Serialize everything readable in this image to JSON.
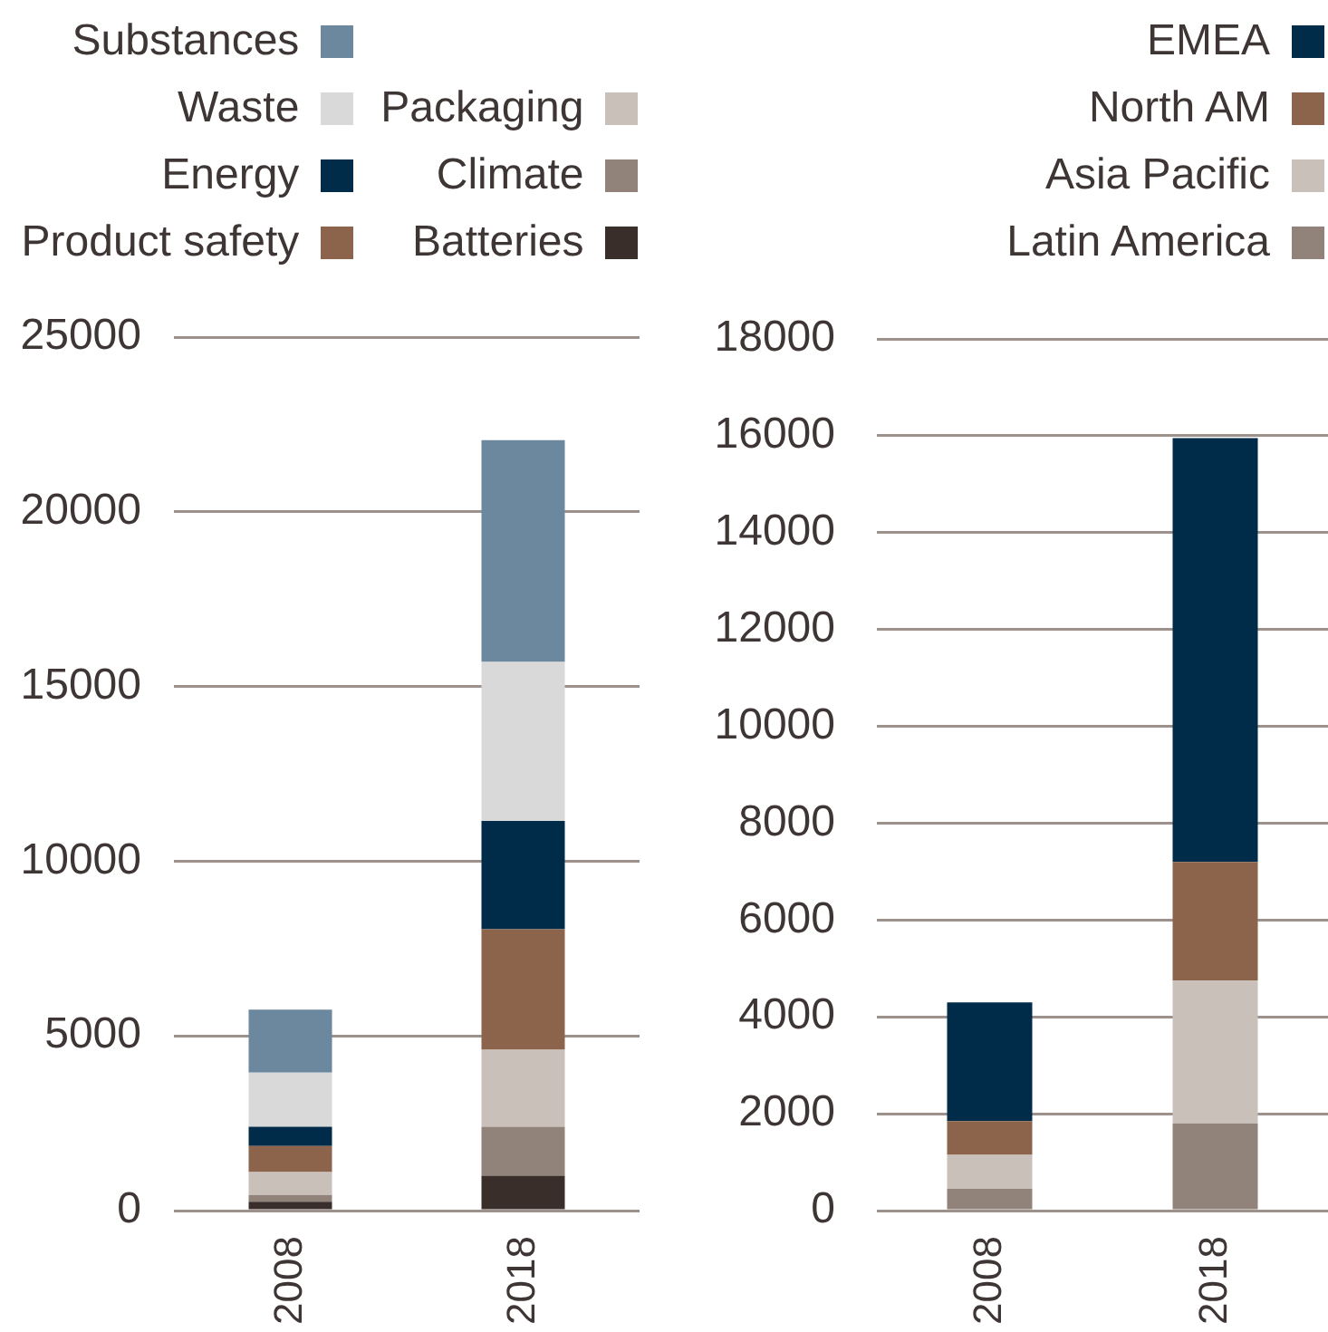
{
  "chart_data": [
    {
      "type": "bar",
      "stacked": true,
      "categories": [
        "2008",
        "2018"
      ],
      "series": [
        {
          "name": "Batteries",
          "color": "#3a2e2b",
          "values": [
            250,
            1000
          ]
        },
        {
          "name": "Climate",
          "color": "#918379",
          "values": [
            200,
            1400
          ]
        },
        {
          "name": "Packaging",
          "color": "#cac0ba",
          "values": [
            650,
            2200
          ]
        },
        {
          "name": "Product safety",
          "color": "#8c644c",
          "values": [
            750,
            3450
          ]
        },
        {
          "name": "Energy",
          "color": "#002b49",
          "values": [
            550,
            3100
          ]
        },
        {
          "name": "Waste",
          "color": "#d9d9d9",
          "values": [
            1550,
            4550
          ]
        },
        {
          "name": "Substances",
          "color": "#6b889e",
          "values": [
            1800,
            6350
          ]
        }
      ],
      "ylim": [
        0,
        25000
      ],
      "yticks": [
        0,
        5000,
        10000,
        15000,
        20000,
        25000
      ],
      "grid": "y",
      "legend": "top"
    },
    {
      "type": "bar",
      "stacked": true,
      "categories": [
        "2008",
        "2018"
      ],
      "series": [
        {
          "name": "Latin America",
          "color": "#918379",
          "values": [
            450,
            1800
          ]
        },
        {
          "name": "Asia Pacific",
          "color": "#cac0ba",
          "values": [
            700,
            2950
          ]
        },
        {
          "name": "North AM",
          "color": "#8c644c",
          "values": [
            700,
            2450
          ]
        },
        {
          "name": "EMEA",
          "color": "#002b49",
          "values": [
            2450,
            8750
          ]
        }
      ],
      "ylim": [
        0,
        18000
      ],
      "yticks": [
        0,
        2000,
        4000,
        6000,
        8000,
        10000,
        12000,
        14000,
        16000,
        18000
      ],
      "grid": "y",
      "legend": "top right"
    }
  ]
}
